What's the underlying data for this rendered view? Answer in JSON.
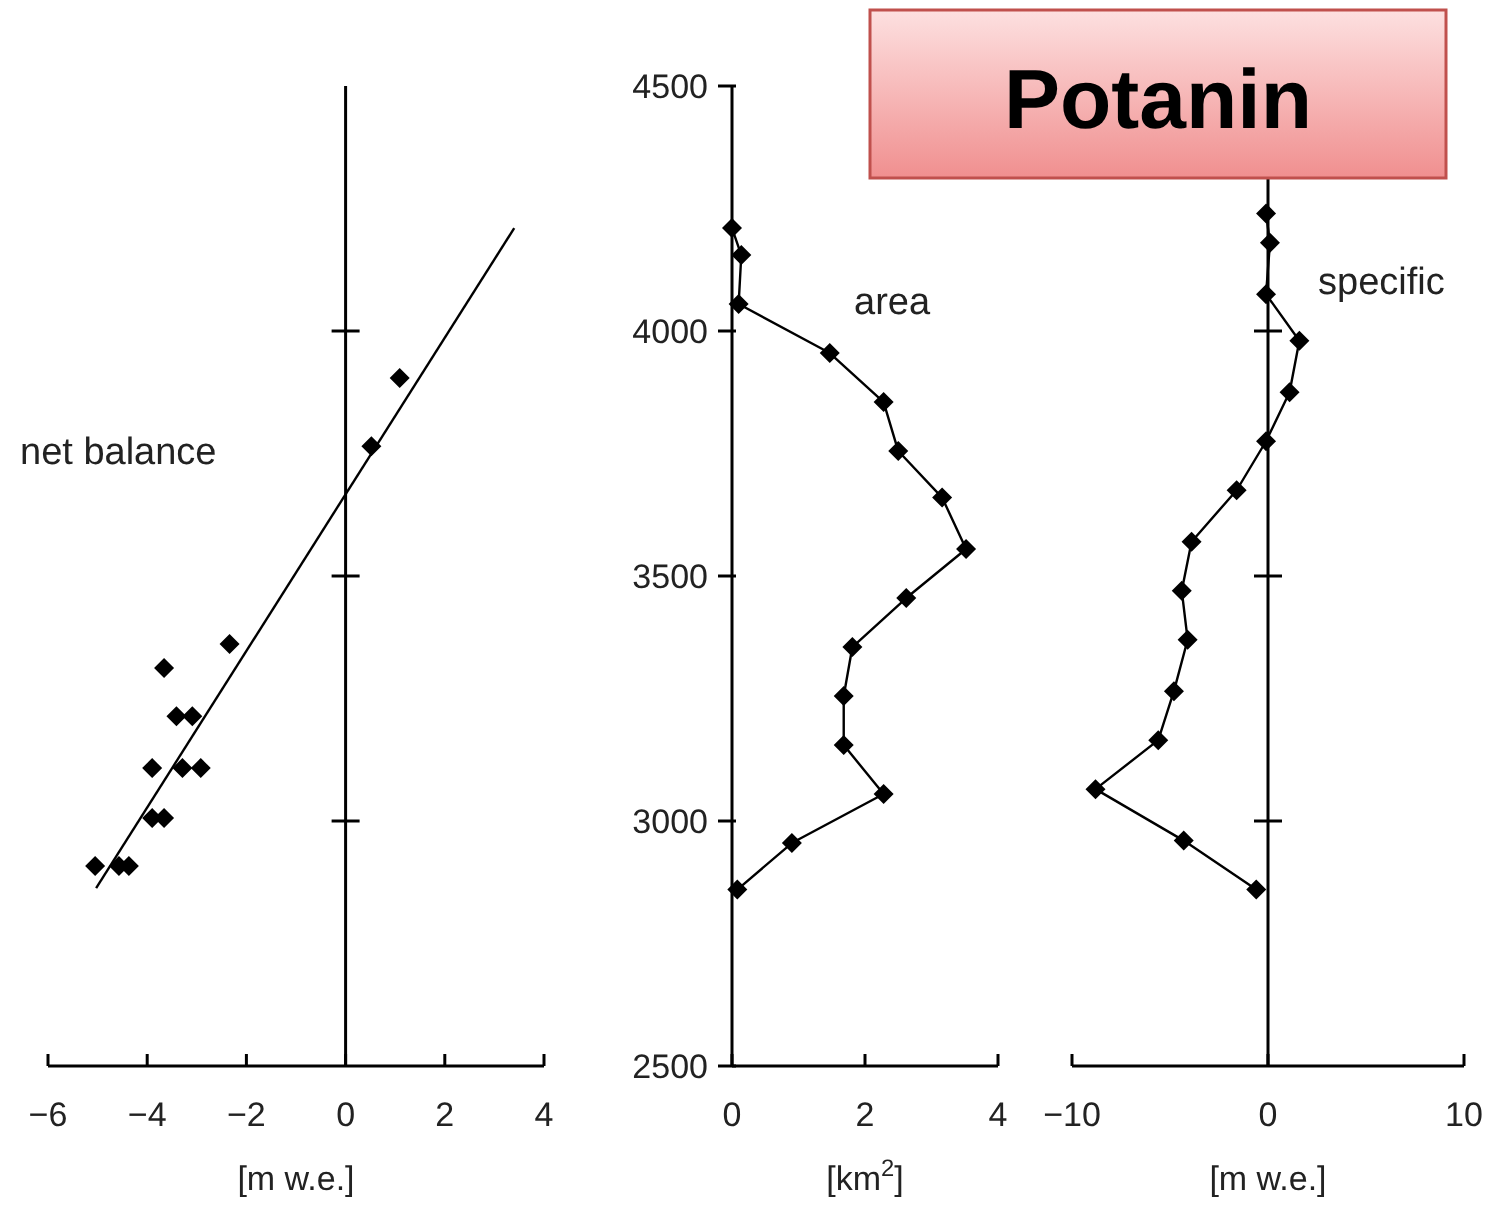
{
  "chart_data": [
    {
      "type": "scatter",
      "title": "net balance",
      "xlabel": "[m w.e.]",
      "xlim": [
        -6,
        4
      ],
      "xticks": [
        -6,
        -4,
        -2,
        0,
        2,
        4
      ],
      "ylim": [
        2500,
        4500
      ],
      "yticks": [
        {
          "value": 3000,
          "label": null
        },
        {
          "value": 3500,
          "label": null
        },
        {
          "value": 4000,
          "label": null
        }
      ],
      "tick_labels": "x",
      "marker": "diamond",
      "series": [
        {
          "color": "#000000",
          "x": [
            1.09,
            0.52,
            -2.34,
            -3.66,
            -3.41,
            -3.09,
            -3.9,
            -3.29,
            -2.92,
            -3.9,
            -3.66,
            -5.05,
            -4.57,
            -4.37
          ],
          "values": [
            3904,
            3765,
            3361,
            3312,
            3214,
            3214,
            3108,
            3108,
            3108,
            3006,
            3006,
            2908,
            2908,
            2908
          ]
        },
        {
          "type": "line",
          "marker": "none",
          "line_style": "solid",
          "color": "#000000",
          "x": [
            -5.03,
            3.4
          ],
          "values": [
            2863,
            4210
          ]
        }
      ]
    },
    {
      "type": "line",
      "title": "area",
      "xlabel": "[km$^{2}$]",
      "annotations": [
        "Potanin"
      ],
      "xlim": [
        0,
        4
      ],
      "xticks": [
        0,
        2,
        4
      ],
      "ylim": [
        2500,
        4500
      ],
      "yticks": [
        2500,
        3000,
        3500,
        4000,
        4500
      ],
      "marker": "diamond",
      "line_style": "solid",
      "series": [
        {
          "color": "#000000",
          "x": [
            0.0,
            0.14,
            0.1,
            1.47,
            2.28,
            2.5,
            3.16,
            3.52,
            2.62,
            1.81,
            1.68,
            1.68,
            2.28,
            0.9,
            0.08
          ],
          "values": [
            4210,
            4155,
            4055,
            3955,
            3855,
            3755,
            3660,
            3555,
            3455,
            3355,
            3255,
            3155,
            3055,
            2955,
            2860
          ]
        }
      ]
    },
    {
      "type": "line",
      "title": "specific",
      "xlabel": "[m w.e.]",
      "xlim": [
        -10,
        10
      ],
      "xticks": [
        -10,
        0,
        10
      ],
      "ylim": [
        2500,
        4500
      ],
      "yticks": [
        {
          "value": 3000,
          "label": null
        },
        {
          "value": 3500,
          "label": null
        },
        {
          "value": 4000,
          "label": null
        }
      ],
      "tick_labels": "x",
      "marker": "diamond",
      "line_style": "solid",
      "series": [
        {
          "color": "#000000",
          "x": [
            -0.1,
            0.1,
            -0.1,
            1.6,
            1.1,
            -0.1,
            -1.6,
            -3.9,
            -4.4,
            -4.1,
            -4.8,
            -5.6,
            -8.8,
            -4.3,
            -0.6
          ],
          "values": [
            4240,
            4180,
            4075,
            3980,
            3875,
            3775,
            3675,
            3570,
            3470,
            3370,
            3265,
            3165,
            3065,
            2960,
            2860
          ]
        }
      ]
    }
  ]
}
